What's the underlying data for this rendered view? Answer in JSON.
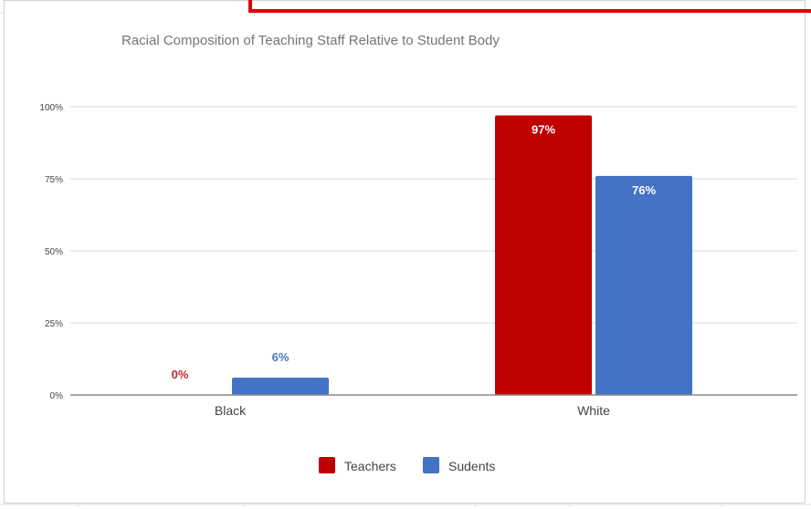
{
  "chart_data": {
    "type": "bar",
    "title": "Racial Composition of Teaching Staff Relative to Student Body",
    "categories": [
      "Black",
      "White"
    ],
    "series": [
      {
        "name": "Teachers",
        "values": [
          0,
          97
        ],
        "labels": [
          "0%",
          "97%"
        ],
        "color": "#c00000",
        "label_color": "#c0292b"
      },
      {
        "name": "Sudents",
        "values": [
          6,
          76
        ],
        "labels": [
          "6%",
          "76%"
        ],
        "color": "#4472c4",
        "label_color": "#4a78c0"
      }
    ],
    "ylim": [
      0,
      100
    ],
    "y_ticks": [
      {
        "value": 0,
        "label": "0%"
      },
      {
        "value": 25,
        "label": "25%"
      },
      {
        "value": 50,
        "label": "50%"
      },
      {
        "value": 75,
        "label": "75%"
      },
      {
        "value": 100,
        "label": "100%"
      }
    ],
    "grid": true,
    "legend_position": "bottom-center"
  },
  "colors": {
    "title_text": "#757575",
    "axis_text": "#444444",
    "gridline": "#d9d9d9",
    "baseline": "#888888"
  }
}
